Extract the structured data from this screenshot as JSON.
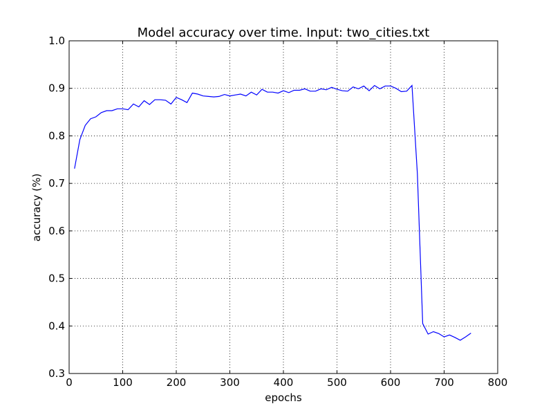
{
  "chart_data": {
    "type": "line",
    "title": "Model accuracy over time. Input: two_cities.txt",
    "xlabel": "epochs",
    "ylabel": "accuracy (%)",
    "xlim": [
      0,
      800
    ],
    "ylim": [
      0.3,
      1.0
    ],
    "xticks": [
      0,
      100,
      200,
      300,
      400,
      500,
      600,
      700,
      800
    ],
    "yticks": [
      0.3,
      0.4,
      0.5,
      0.6,
      0.7,
      0.8,
      0.9,
      1.0
    ],
    "xtick_labels": [
      "0",
      "100",
      "200",
      "300",
      "400",
      "500",
      "600",
      "700",
      "800"
    ],
    "ytick_labels": [
      "0.3",
      "0.4",
      "0.5",
      "0.6",
      "0.7",
      "0.8",
      "0.9",
      "1.0"
    ],
    "grid": true,
    "line_color": "#0000ff",
    "series": [
      {
        "x": [
          10,
          20,
          30,
          40,
          50,
          60,
          70,
          80,
          90,
          100,
          110,
          120,
          130,
          140,
          150,
          160,
          170,
          180,
          190,
          200,
          210,
          220,
          230,
          240,
          250,
          260,
          270,
          280,
          290,
          300,
          310,
          320,
          330,
          340,
          350,
          360,
          370,
          380,
          390,
          400,
          410,
          420,
          430,
          440,
          450,
          460,
          470,
          480,
          490,
          500,
          510,
          520,
          530,
          540,
          550,
          560,
          570,
          580,
          590,
          600,
          610,
          620,
          630,
          640,
          650,
          660,
          670,
          680,
          690,
          700,
          710,
          720,
          730,
          740,
          750
        ],
        "y": [
          0.731,
          0.792,
          0.822,
          0.836,
          0.84,
          0.849,
          0.853,
          0.853,
          0.857,
          0.857,
          0.855,
          0.867,
          0.861,
          0.874,
          0.866,
          0.876,
          0.876,
          0.875,
          0.867,
          0.881,
          0.876,
          0.87,
          0.89,
          0.888,
          0.884,
          0.883,
          0.882,
          0.883,
          0.887,
          0.884,
          0.886,
          0.888,
          0.884,
          0.892,
          0.886,
          0.898,
          0.892,
          0.892,
          0.89,
          0.895,
          0.891,
          0.896,
          0.896,
          0.899,
          0.894,
          0.894,
          0.899,
          0.897,
          0.902,
          0.898,
          0.895,
          0.894,
          0.903,
          0.899,
          0.905,
          0.895,
          0.906,
          0.899,
          0.905,
          0.905,
          0.9,
          0.893,
          0.894,
          0.906,
          0.72,
          0.405,
          0.383,
          0.388,
          0.384,
          0.377,
          0.381,
          0.376,
          0.37,
          0.377,
          0.385
        ]
      }
    ]
  }
}
